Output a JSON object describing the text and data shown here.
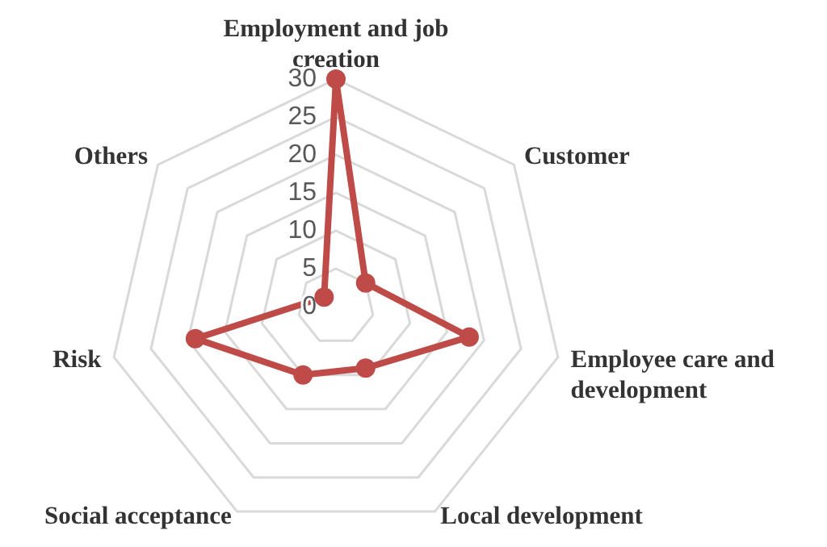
{
  "chart_data": {
    "type": "radar",
    "categories": [
      "Employment and job creation",
      "Customer",
      "Employee care and development",
      "Local development",
      "Social acceptance",
      "Risk",
      "Others"
    ],
    "series": [
      {
        "color": "#be4b48",
        "values": [
          30,
          5,
          18,
          9,
          10,
          19,
          2
        ]
      }
    ],
    "ylim": [
      0,
      30
    ],
    "yticks": [
      0,
      5,
      10,
      15,
      20,
      25,
      30
    ],
    "grid": true,
    "marker": "circle",
    "line_style": "solid"
  }
}
